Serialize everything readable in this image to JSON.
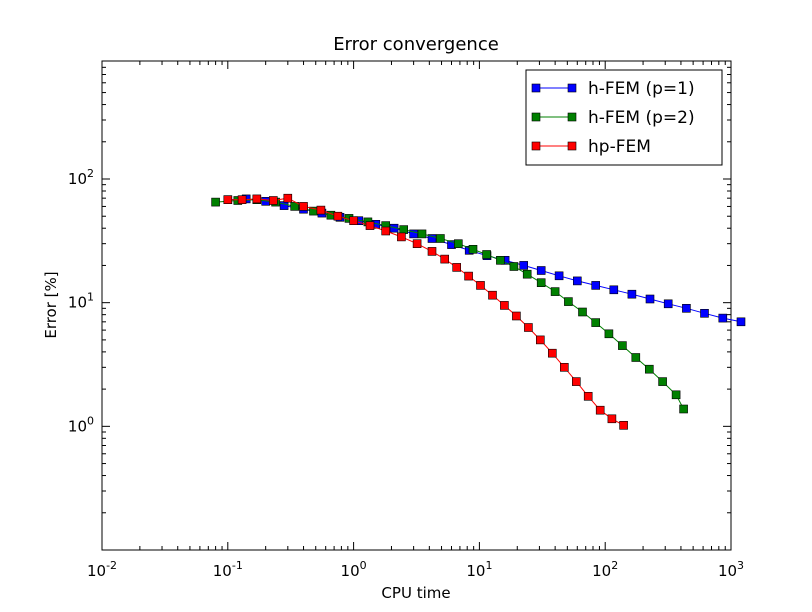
{
  "chart_data": {
    "type": "line",
    "title": "Error convergence",
    "xlabel": "CPU time",
    "ylabel": "Error [%]",
    "xscale": "log",
    "yscale": "log",
    "xlim": [
      0.01,
      1000
    ],
    "ylim": [
      0.1,
      900
    ],
    "grid": false,
    "legend_position": "top-right",
    "x_ticks": [
      {
        "value": 0.01,
        "base": "10",
        "exp": "-2"
      },
      {
        "value": 0.1,
        "base": "10",
        "exp": "-1"
      },
      {
        "value": 1,
        "base": "10",
        "exp": "0"
      },
      {
        "value": 10,
        "base": "10",
        "exp": "1"
      },
      {
        "value": 100,
        "base": "10",
        "exp": "2"
      },
      {
        "value": 1000,
        "base": "10",
        "exp": "3"
      }
    ],
    "y_ticks": [
      {
        "value": 1,
        "base": "10",
        "exp": "0"
      },
      {
        "value": 10,
        "base": "10",
        "exp": "1"
      },
      {
        "value": 100,
        "base": "10",
        "exp": "2"
      }
    ],
    "series": [
      {
        "name": "h-FEM (p=1)",
        "color": "#0000ff",
        "marker": "square",
        "points": [
          [
            0.1,
            68
          ],
          [
            0.14,
            69
          ],
          [
            0.2,
            66
          ],
          [
            0.28,
            61
          ],
          [
            0.4,
            57
          ],
          [
            0.56,
            53
          ],
          [
            0.78,
            49
          ],
          [
            1.1,
            46
          ],
          [
            1.5,
            43
          ],
          [
            2.1,
            40
          ],
          [
            3.0,
            36
          ],
          [
            4.2,
            33
          ],
          [
            6.0,
            29.5
          ],
          [
            8.3,
            26.5
          ],
          [
            11.5,
            24
          ],
          [
            16,
            22
          ],
          [
            22.5,
            20
          ],
          [
            31,
            18.2
          ],
          [
            43,
            16.5
          ],
          [
            60,
            15
          ],
          [
            84,
            13.8
          ],
          [
            117,
            12.7
          ],
          [
            163,
            11.7
          ],
          [
            227,
            10.7
          ],
          [
            317,
            9.8
          ],
          [
            442,
            9.0
          ],
          [
            616,
            8.2
          ],
          [
            860,
            7.5
          ],
          [
            1200,
            7.0
          ]
        ]
      },
      {
        "name": "h-FEM (p=2)",
        "color": "#008000",
        "marker": "square",
        "points": [
          [
            0.08,
            65
          ],
          [
            0.12,
            67
          ],
          [
            0.17,
            68
          ],
          [
            0.24,
            65
          ],
          [
            0.34,
            60
          ],
          [
            0.48,
            55
          ],
          [
            0.66,
            51
          ],
          [
            0.92,
            48
          ],
          [
            1.3,
            45
          ],
          [
            1.8,
            42
          ],
          [
            2.5,
            39
          ],
          [
            3.5,
            36
          ],
          [
            4.9,
            33
          ],
          [
            6.8,
            30
          ],
          [
            8.9,
            27
          ],
          [
            11.4,
            24.5
          ],
          [
            14.7,
            22
          ],
          [
            18.8,
            19.6
          ],
          [
            24,
            17
          ],
          [
            31,
            14.5
          ],
          [
            40,
            12.3
          ],
          [
            51,
            10.2
          ],
          [
            66,
            8.4
          ],
          [
            84,
            6.9
          ],
          [
            107,
            5.6
          ],
          [
            137,
            4.5
          ],
          [
            175,
            3.6
          ],
          [
            224,
            2.9
          ],
          [
            286,
            2.3
          ],
          [
            366,
            1.8
          ],
          [
            420,
            1.38
          ]
        ]
      },
      {
        "name": "hp-FEM",
        "color": "#ff0000",
        "marker": "square",
        "points": [
          [
            0.1,
            68
          ],
          [
            0.13,
            68
          ],
          [
            0.17,
            69
          ],
          [
            0.23,
            67
          ],
          [
            0.3,
            70
          ],
          [
            0.4,
            60
          ],
          [
            0.55,
            56
          ],
          [
            0.75,
            50
          ],
          [
            1.0,
            46
          ],
          [
            1.35,
            42
          ],
          [
            1.8,
            38
          ],
          [
            2.4,
            34
          ],
          [
            3.2,
            30
          ],
          [
            4.2,
            26
          ],
          [
            5.3,
            22.5
          ],
          [
            6.6,
            19.3
          ],
          [
            8.2,
            16.4
          ],
          [
            10.2,
            13.8
          ],
          [
            12.7,
            11.5
          ],
          [
            15.8,
            9.5
          ],
          [
            19.7,
            7.8
          ],
          [
            24.5,
            6.3
          ],
          [
            30.5,
            5.0
          ],
          [
            38,
            3.9
          ],
          [
            47.3,
            3.0
          ],
          [
            58.9,
            2.3
          ],
          [
            73.3,
            1.75
          ],
          [
            91.3,
            1.35
          ],
          [
            113,
            1.15
          ],
          [
            140,
            1.02
          ]
        ]
      }
    ]
  }
}
